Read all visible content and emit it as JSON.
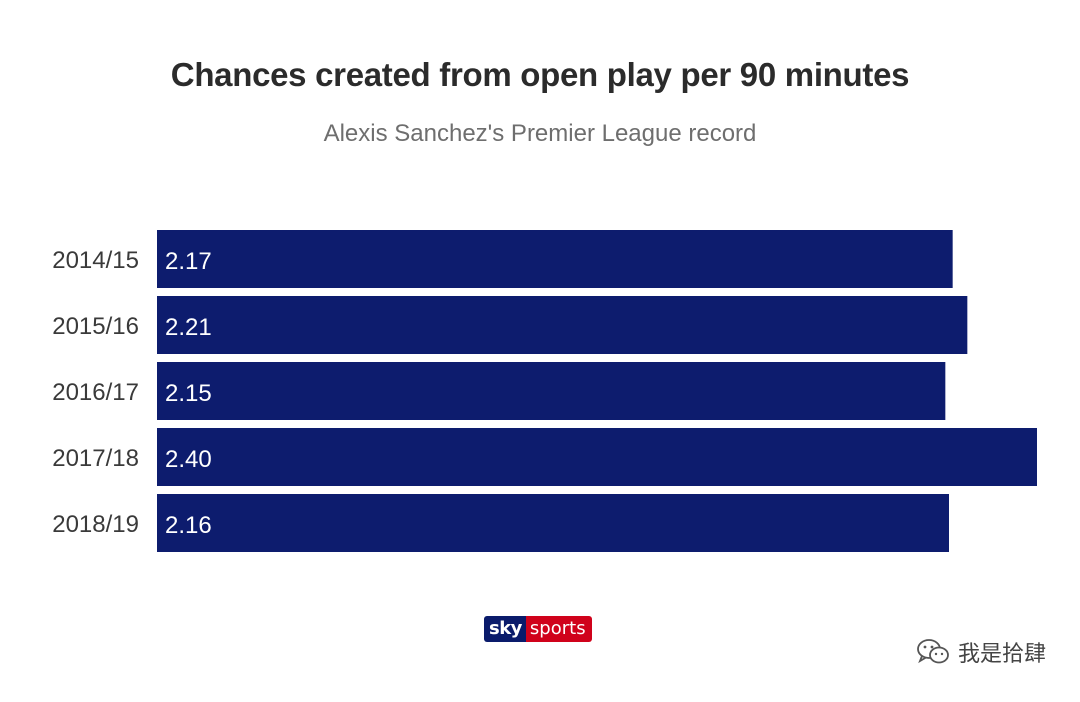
{
  "title": "Chances created from open play per 90 minutes",
  "subtitle": "Alexis Sanchez's Premier League record",
  "logo": {
    "sky": "sky",
    "sports": "sports",
    "colors": {
      "sky": "#0a1b6b",
      "sports": "#d0021b"
    }
  },
  "watermark": {
    "text": "我是拾肆",
    "icon": "wechat-bubble-icon"
  },
  "colors": {
    "bar": "#0d1c6e",
    "bar_label": "#ffffff",
    "category_label": "#3a3a3a"
  },
  "chart_data": {
    "type": "bar",
    "orientation": "horizontal",
    "categories": [
      "2014/15",
      "2015/16",
      "2016/17",
      "2017/18",
      "2018/19"
    ],
    "values": [
      2.17,
      2.21,
      2.15,
      2.4,
      2.16
    ],
    "value_labels": [
      "2.17",
      "2.21",
      "2.15",
      "2.40",
      "2.16"
    ],
    "title": "Chances created from open play per 90 minutes",
    "subtitle": "Alexis Sanchez's Premier League record",
    "xlim": [
      0,
      2.4
    ],
    "grid": false,
    "legend": "none"
  }
}
